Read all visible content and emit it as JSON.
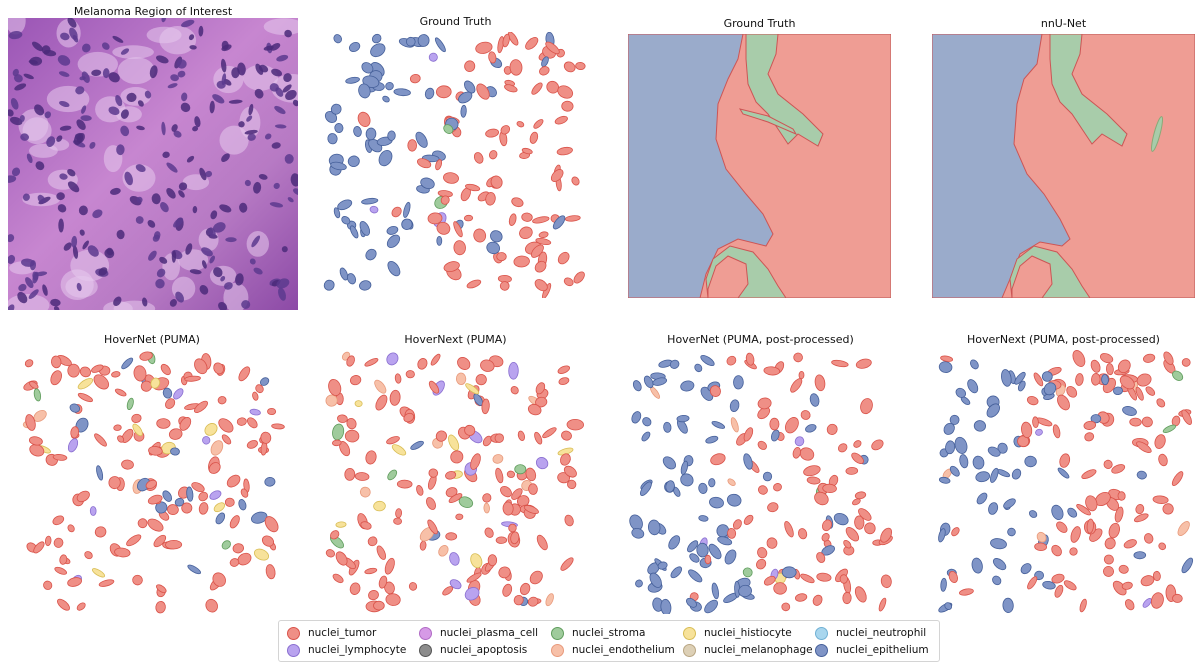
{
  "panels": [
    {
      "title": "Melanoma Region of Interest",
      "kind": "he-image"
    },
    {
      "title": "Ground Truth",
      "kind": "nuclei",
      "mix": {
        "epithelium": 0.5,
        "tumor": 0.42,
        "lymphocyte": 0.02,
        "stroma": 0.03,
        "endothelium": 0.03
      },
      "leftEpithelium": true
    },
    {
      "title": "Ground Truth",
      "kind": "tissue-gt"
    },
    {
      "title": "nnU-Net",
      "kind": "tissue-pred"
    },
    {
      "title": "HoverNet (PUMA)",
      "kind": "nuclei",
      "mix": {
        "tumor": 0.8,
        "epithelium": 0.07,
        "lymphocyte": 0.05,
        "stroma": 0.03,
        "histiocyte": 0.03,
        "endothelium": 0.02
      },
      "leftEpithelium": false
    },
    {
      "title": "HoverNext (PUMA)",
      "kind": "nuclei",
      "mix": {
        "tumor": 0.78,
        "endothelium": 0.08,
        "histiocyte": 0.06,
        "lymphocyte": 0.03,
        "stroma": 0.03,
        "epithelium": 0.02
      },
      "leftEpithelium": false
    },
    {
      "title": "HoverNet (PUMA, post-processed)",
      "kind": "nuclei",
      "mix": {
        "epithelium": 0.45,
        "tumor": 0.45,
        "lymphocyte": 0.03,
        "stroma": 0.03,
        "endothelium": 0.02,
        "histiocyte": 0.02
      },
      "leftEpithelium": true
    },
    {
      "title": "HoverNext (PUMA, post-processed)",
      "kind": "nuclei",
      "mix": {
        "epithelium": 0.42,
        "tumor": 0.44,
        "endothelium": 0.06,
        "histiocyte": 0.04,
        "lymphocyte": 0.02,
        "stroma": 0.02
      },
      "leftEpithelium": true
    }
  ],
  "legend": {
    "items": [
      {
        "key": "tumor",
        "label": "nuclei_tumor",
        "color": "#ef8f86"
      },
      {
        "key": "lymphocyte",
        "label": "nuclei_lymphocyte",
        "color": "#b9a3ef"
      },
      {
        "key": "plasma_cell",
        "label": "nuclei_plasma_cell",
        "color": "#d69ae6"
      },
      {
        "key": "apoptosis",
        "label": "nuclei_apoptosis",
        "color": "#8c8c8c"
      },
      {
        "key": "stroma",
        "label": "nuclei_stroma",
        "color": "#9fcb9c"
      },
      {
        "key": "endothelium",
        "label": "nuclei_endothelium",
        "color": "#f7c0a8"
      },
      {
        "key": "histiocyte",
        "label": "nuclei_histiocyte",
        "color": "#f7e29a"
      },
      {
        "key": "melanophage",
        "label": "nuclei_melanophage",
        "color": "#ddd0b6"
      },
      {
        "key": "neutrophil",
        "label": "nuclei_neutrophil",
        "color": "#a8d6ee"
      },
      {
        "key": "epithelium",
        "label": "nuclei_epithelium",
        "color": "#7f94c6"
      }
    ]
  },
  "tissue_colors": {
    "tumor": "#ef9d94",
    "epithelium": "#9aabcb",
    "stroma": "#a8ccaa"
  }
}
